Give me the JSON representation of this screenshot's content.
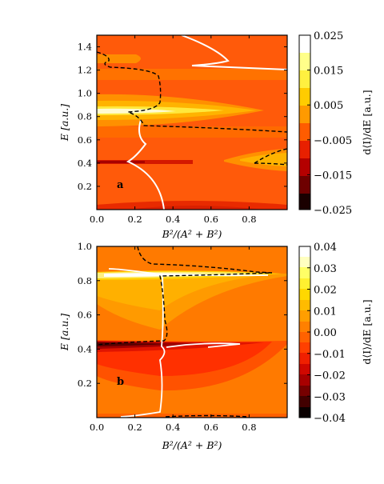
{
  "panels": [
    {
      "letter": "a",
      "xlabel": "B²/(A² + B²)",
      "ylabel": "E [a.u.]",
      "xlim": [
        0,
        1
      ],
      "ylim": [
        0,
        1.5
      ],
      "xticks": [
        "0.0",
        "0.2",
        "0.4",
        "0.6",
        "0.8"
      ],
      "xtick_values": [
        0,
        0.2,
        0.4,
        0.6,
        0.8
      ],
      "yticks": [
        "0.2",
        "0.4",
        "0.6",
        "0.8",
        "1.0",
        "1.2",
        "1.4"
      ],
      "ytick_values": [
        0.2,
        0.4,
        0.6,
        0.8,
        1.0,
        1.2,
        1.4
      ],
      "colorbar": {
        "label": "d⟨I⟩/dE [a.u.]",
        "ticks": [
          "0.025",
          "0.015",
          "0.005",
          "−0.005",
          "−0.015",
          "−0.025"
        ],
        "tick_values": [
          0.025,
          0.015,
          0.005,
          -0.005,
          -0.015,
          -0.025
        ],
        "range": [
          -0.025,
          0.025
        ],
        "levels": 10
      },
      "chart_data": {
        "type": "heatmap",
        "x": "B²/(A² + B²)",
        "y": "E [a.u.]",
        "features": [
          {
            "kind": "peak",
            "E": 0.84,
            "value": 0.02,
            "x_span": [
              0,
              0.82
            ]
          },
          {
            "kind": "peak",
            "E": 1.27,
            "value": 0.006,
            "x_span": [
              0,
              0.28
            ]
          },
          {
            "kind": "dip",
            "E": 0.05,
            "value": -0.006,
            "x_span": [
              0.2,
              0.9
            ]
          },
          {
            "kind": "dip",
            "E": 0.41,
            "value": -0.015,
            "x_span": [
              0,
              0.35
            ]
          },
          {
            "kind": "peak",
            "E": 0.42,
            "value": 0.005,
            "x_span": [
              0.6,
              1.0
            ]
          }
        ],
        "white_curve": {
          "x": [
            0.65,
            0.62,
            0.58,
            0.6,
            0.7,
            1.0,
            0.22,
            0.2,
            0.25,
            0.22,
            0.2,
            0.23,
            0.29,
            0.34,
            0.35
          ],
          "y": [
            1.5,
            1.45,
            1.38,
            1.33,
            1.28,
            1.22,
            0.8,
            0.7,
            0.6,
            0.5,
            0.43,
            0.38,
            0.3,
            0.15,
            0.0
          ]
        },
        "dashed_curve": {
          "x": [
            0.0,
            0.06,
            0.07,
            0.05,
            0.05,
            0.25,
            0.29,
            0.32,
            0.3,
            0.15,
            0.3,
            0.7,
            1.0
          ],
          "y": [
            1.35,
            1.3,
            1.28,
            1.25,
            1.22,
            1.18,
            1.1,
            0.95,
            0.86,
            0.84,
            0.74,
            0.7,
            0.67
          ]
        }
      }
    },
    {
      "letter": "b",
      "xlabel": "B²/(A² + B²)",
      "ylabel": "E [a.u.]",
      "xlim": [
        0,
        1
      ],
      "ylim": [
        0,
        1.0
      ],
      "xticks": [
        "0.0",
        "0.2",
        "0.4",
        "0.6",
        "0.8"
      ],
      "xtick_values": [
        0,
        0.2,
        0.4,
        0.6,
        0.8
      ],
      "yticks": [
        "0.2",
        "0.4",
        "0.6",
        "0.8",
        "1.0"
      ],
      "ytick_values": [
        0.2,
        0.4,
        0.6,
        0.8,
        1.0
      ],
      "colorbar": {
        "label": "d⟨I⟩/dE [a.u.]",
        "ticks": [
          "0.04",
          "0.03",
          "0.02",
          "0.01",
          "0.00",
          "−0.01",
          "−0.02",
          "−0.03",
          "−0.04"
        ],
        "tick_values": [
          0.04,
          0.03,
          0.02,
          0.01,
          0.0,
          -0.01,
          -0.02,
          -0.03,
          -0.04
        ],
        "range": [
          -0.04,
          0.04
        ],
        "levels": 16
      },
      "chart_data": {
        "type": "heatmap",
        "x": "B²/(A² + B²)",
        "y": "E [a.u.]",
        "features": [
          {
            "kind": "peak",
            "E": 0.84,
            "value": 0.035,
            "x_span": [
              0,
              0.9
            ]
          },
          {
            "kind": "dip",
            "E": 0.42,
            "value": -0.03,
            "x_span": [
              0,
              0.9
            ]
          },
          {
            "kind": "dip",
            "E": 0.3,
            "value": -0.01,
            "x_span": [
              0.1,
              0.9
            ]
          }
        ],
        "white_curve": {
          "x": [
            0.85,
            0.6,
            0.4,
            0.15,
            0.35,
            0.34,
            0.33,
            0.33,
            0.32,
            0.13
          ],
          "y": [
            0.83,
            0.85,
            0.84,
            0.84,
            0.8,
            0.6,
            0.42,
            0.3,
            0.1,
            0.02
          ]
        },
        "dashed_curve": {
          "x": [
            0.22,
            0.3,
            0.55,
            0.93,
            0.3,
            0.34,
            0.34,
            0.25,
            0.02,
            0.35,
            0.6,
            0.82
          ],
          "y": [
            1.0,
            0.9,
            0.86,
            0.84,
            0.8,
            0.6,
            0.46,
            0.44,
            0.42,
            0.02,
            0.02,
            0.02
          ]
        }
      }
    }
  ]
}
